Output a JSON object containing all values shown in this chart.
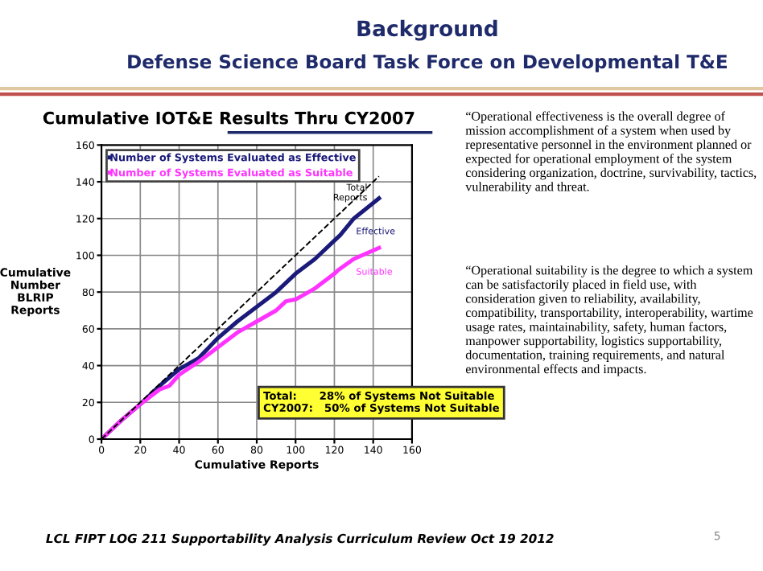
{
  "chart_data": {
    "type": "line",
    "title": "Background",
    "subtitle": "Defense Science Board Task Force on Developmental T&E",
    "xlabel": "Cumulative Reports",
    "ylabel": "Cumulative\nNumber\nBLRIP\nReports",
    "series": [
      {
        "name": "Number of Systems Evaluated as Effective",
        "color": "#1a1a7a",
        "x": [
          0,
          10,
          20,
          30,
          40,
          50,
          60,
          70,
          80,
          90,
          100,
          110,
          120,
          123,
          130,
          143
        ],
        "values": [
          0,
          10,
          19,
          29,
          38,
          44,
          55,
          64,
          72,
          80,
          90,
          98,
          108,
          111,
          120,
          131
        ]
      },
      {
        "name": "Number of Systems Evaluated as Suitable",
        "color": "#ff33ff",
        "x": [
          0,
          10,
          20,
          30,
          35,
          40,
          50,
          60,
          70,
          80,
          90,
          95,
          100,
          110,
          120,
          122,
          130,
          143
        ],
        "values": [
          0,
          10,
          19,
          27,
          29,
          35,
          42,
          50,
          58,
          64,
          70,
          75,
          76,
          82,
          90,
          92,
          98,
          104
        ]
      },
      {
        "name": "Total Reports",
        "color": "#000000",
        "line_style": "dashed",
        "x": [
          0,
          143
        ],
        "values": [
          0,
          143
        ]
      }
    ],
    "xlim": [
      0,
      160
    ],
    "ylim": [
      0,
      160
    ],
    "xticks": [
      0,
      20,
      40,
      60,
      80,
      100,
      120,
      140,
      160
    ],
    "yticks": [
      0,
      20,
      40,
      60,
      80,
      100,
      120,
      140,
      160
    ],
    "grid": true,
    "legend": "top left",
    "annotations": [
      "Cumulative IOT&E Results Thru CY2007",
      {
        "text": "Effective",
        "x": 130,
        "y": 120
      },
      {
        "text": "Suitable",
        "x": 130,
        "y": 98
      },
      "Total:      28% of Systems Not Suitable\nCY2007:   50% of Systems Not Suitable",
      "“Operational effectiveness is the overall degree of mission accomplishment of a system when used by representative personnel in the environment planned or expected for operational employment of the system considering organization, doctrine, survivability, tactics, vulnerability and threat.",
      "“Operational suitability is the degree to which a system can be satisfactorily placed in field use, with consideration given to reliability, availability, compatibility, transportability, interoperability, wartime usage rates, maintainability, safety, human factors, manpower supportability, logistics supportability, documentation, training requirements, and natural environmental effects and impacts.",
      "LCL FIPT LOG 211 Supportability Analysis Curriculum Review Oct 19 2012",
      "5"
    ]
  }
}
